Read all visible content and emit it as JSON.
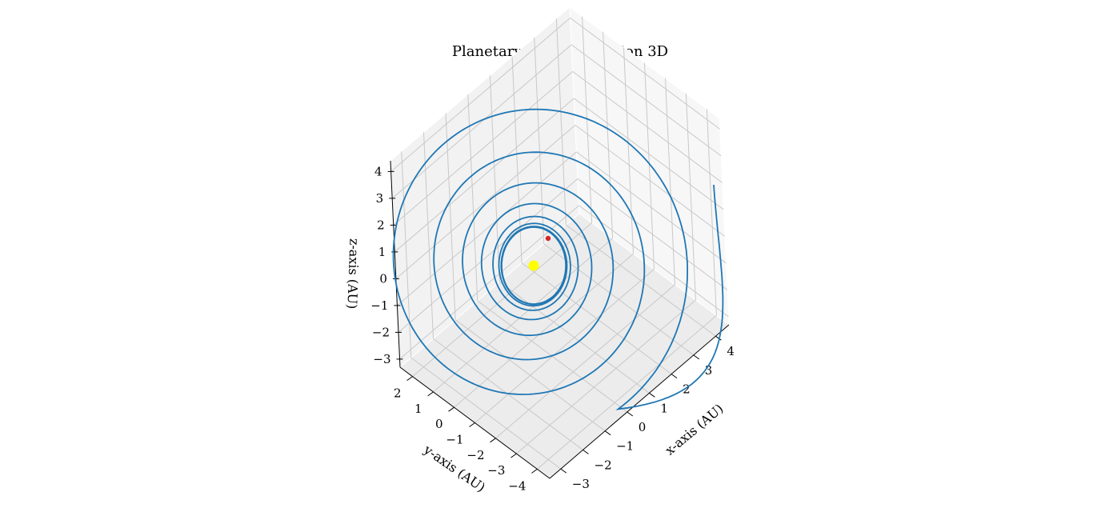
{
  "chart_data": {
    "type": "line3d",
    "title": "Planetary orbit simulation 3D",
    "xlabel": "x-axis (AU)",
    "ylabel": "y-axis (AU)",
    "zlabel": "z-axis (AU)",
    "xlim": [
      -3.5,
      4.6
    ],
    "ylim": [
      -4.6,
      2.6
    ],
    "zlim": [
      -3.3,
      4.4
    ],
    "xticks": [
      -3,
      -2,
      -1,
      0,
      1,
      2,
      3,
      4
    ],
    "yticks": [
      -4,
      -3,
      -2,
      -1,
      0,
      1,
      2
    ],
    "zticks": [
      -3,
      -2,
      -1,
      0,
      1,
      2,
      3,
      4
    ],
    "grid": true,
    "series": [
      {
        "marker": "line",
        "color": "#1f77b4",
        "note_rings": 8,
        "center": [
          0,
          0,
          0
        ],
        "inner_radius": 1.2,
        "outer_radius": 4.3,
        "end_point": [
          4.5,
          2.2,
          4.2
        ]
      },
      {
        "marker": "point",
        "color": "#ffff00",
        "x": [
          0
        ],
        "y": [
          0
        ],
        "z": [
          0
        ]
      },
      {
        "marker": "point",
        "color": "#d62728",
        "x": [
          0.35
        ],
        "y": [
          0.05
        ],
        "z": [
          1.1
        ]
      }
    ]
  }
}
